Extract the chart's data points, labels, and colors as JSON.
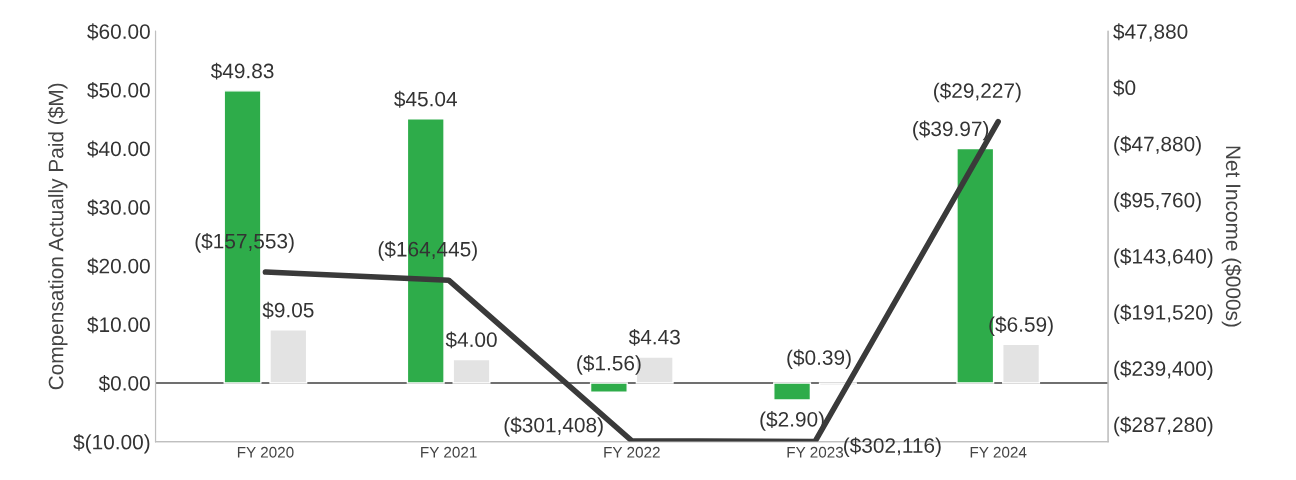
{
  "chart_data": {
    "type": "bar",
    "categories": [
      "FY 2020",
      "FY 2021",
      "FY 2022",
      "FY 2023",
      "FY 2024"
    ],
    "ylabel": "Compensation Actually Paid ($M)",
    "y2label": "Net Income ($000s)",
    "ylim": [
      -10,
      60
    ],
    "yticks": [
      {
        "value": -10,
        "label": "$(10.00)"
      },
      {
        "value": 0,
        "label": "$0.00"
      },
      {
        "value": 10,
        "label": "$10.00"
      },
      {
        "value": 20,
        "label": "$20.00"
      },
      {
        "value": 30,
        "label": "$30.00"
      },
      {
        "value": 40,
        "label": "$40.00"
      },
      {
        "value": 50,
        "label": "$50.00"
      },
      {
        "value": 60,
        "label": "$60.00"
      }
    ],
    "y2lim": [
      -302116,
      47880
    ],
    "y2ticks": [
      {
        "value": 47880,
        "label": "$47,880"
      },
      {
        "value": 0,
        "label": "$0"
      },
      {
        "value": -47880,
        "label": "($47,880)"
      },
      {
        "value": -95760,
        "label": "($95,760)"
      },
      {
        "value": -143640,
        "label": "($143,640)"
      },
      {
        "value": -191520,
        "label": "($191,520)"
      },
      {
        "value": -239400,
        "label": "($239,400)"
      },
      {
        "value": -287280,
        "label": "($287,280)"
      }
    ],
    "grid": false,
    "legend": false,
    "ref_lines": [
      {
        "axis": "y",
        "value": 0,
        "color": "#404040"
      }
    ],
    "series": [
      {
        "color": "#2eac4a",
        "values": [
          49.83,
          45.04,
          -1.56,
          -2.9,
          39.97
        ],
        "value_labels": [
          "$49.83",
          "$45.04",
          "($1.56)",
          "($2.90)",
          "($39.97)"
        ]
      },
      {
        "color": "#e3e3e3",
        "values": [
          9.05,
          4.0,
          4.43,
          -0.39,
          6.59
        ],
        "value_labels": [
          "$9.05",
          "$4.00",
          "$4.43",
          "($0.39)",
          "($6.59)"
        ]
      },
      {
        "type": "line",
        "axis": "y2",
        "color": "#3a3a3a",
        "values": [
          -157553,
          -164445,
          -301408,
          -302116,
          -29227
        ],
        "value_labels": [
          "($157,553)",
          "($164,445)",
          "($301,408)",
          "($302,116)",
          "($29,227)"
        ]
      }
    ]
  }
}
